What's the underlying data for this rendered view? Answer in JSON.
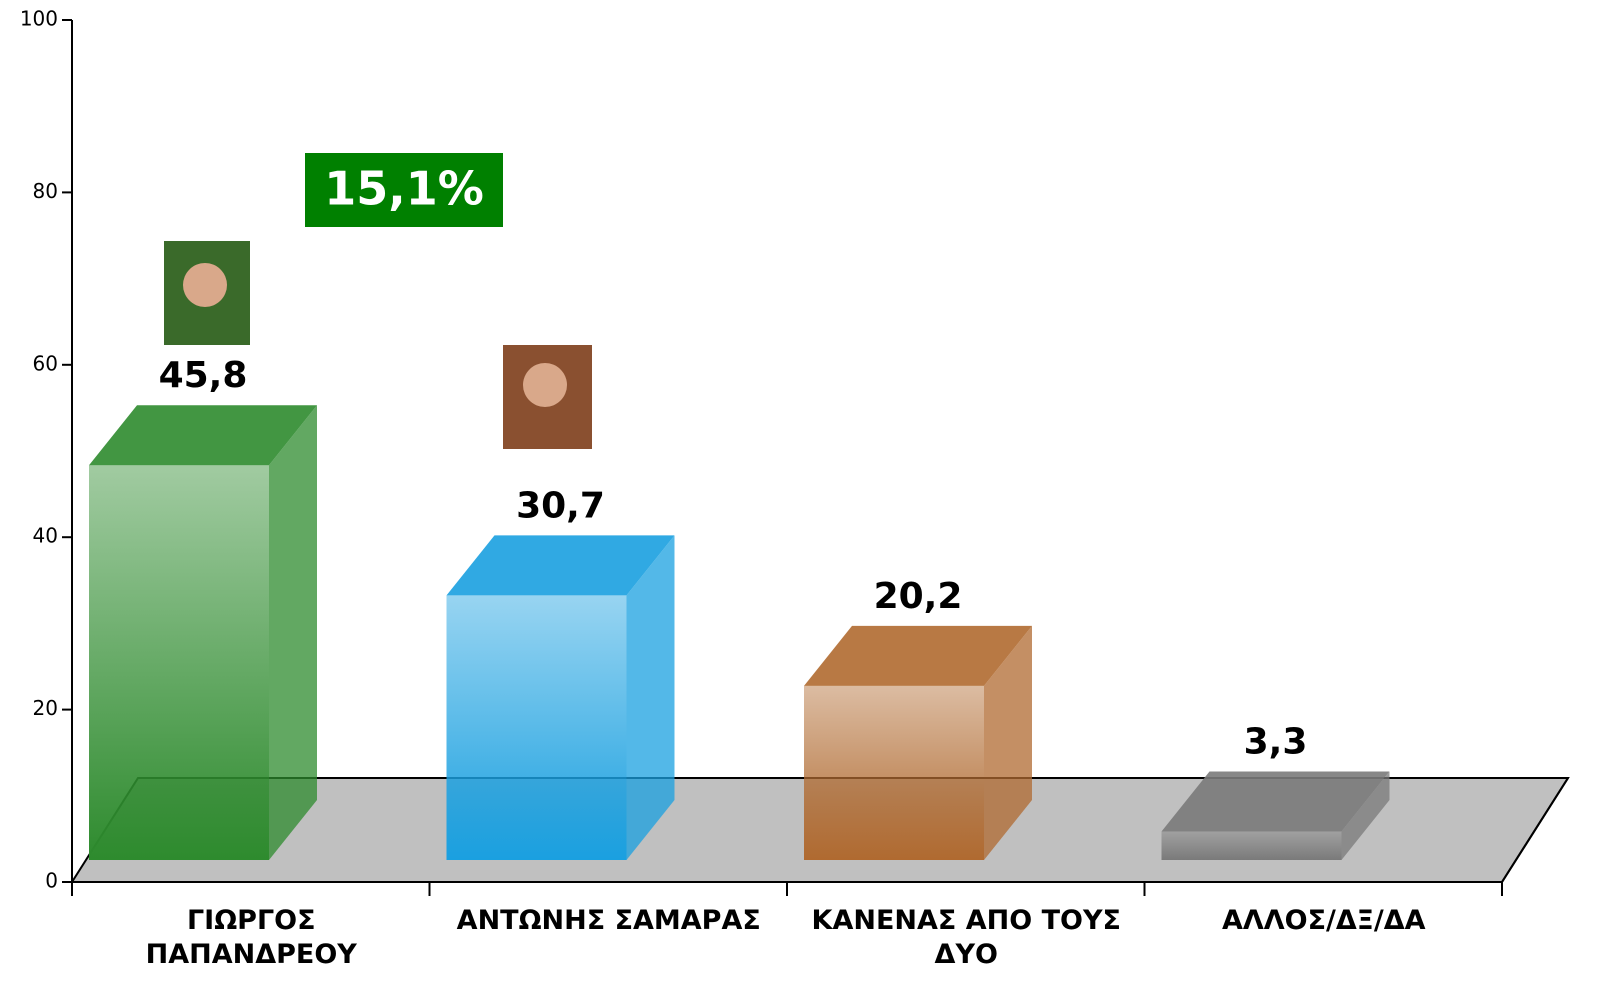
{
  "chart_data": {
    "type": "bar3d",
    "categories": [
      "ΓΙΩΡΓΟΣ ΠΑΠΑΝΔΡΕΟΥ",
      "ΑΝΤΩΝΗΣ ΣΑΜΑΡΑΣ",
      "ΚΑΝΕΝΑΣ ΑΠΟ ΤΟΥΣ ΔΥΟ",
      "ΑΛΛΟΣ/ΔΞ/ΔΑ"
    ],
    "values": [
      45.8,
      30.7,
      20.2,
      3.3
    ],
    "value_labels": [
      "45,8",
      "30,7",
      "20,2",
      "3,3"
    ],
    "colors": [
      "#2e8b2e",
      "#1aa0e0",
      "#b06a30",
      "#7a7a7a"
    ],
    "annotation": "15,1%",
    "ylim": [
      0,
      100
    ],
    "yticks": [
      0,
      20,
      40,
      60,
      80,
      100
    ]
  }
}
